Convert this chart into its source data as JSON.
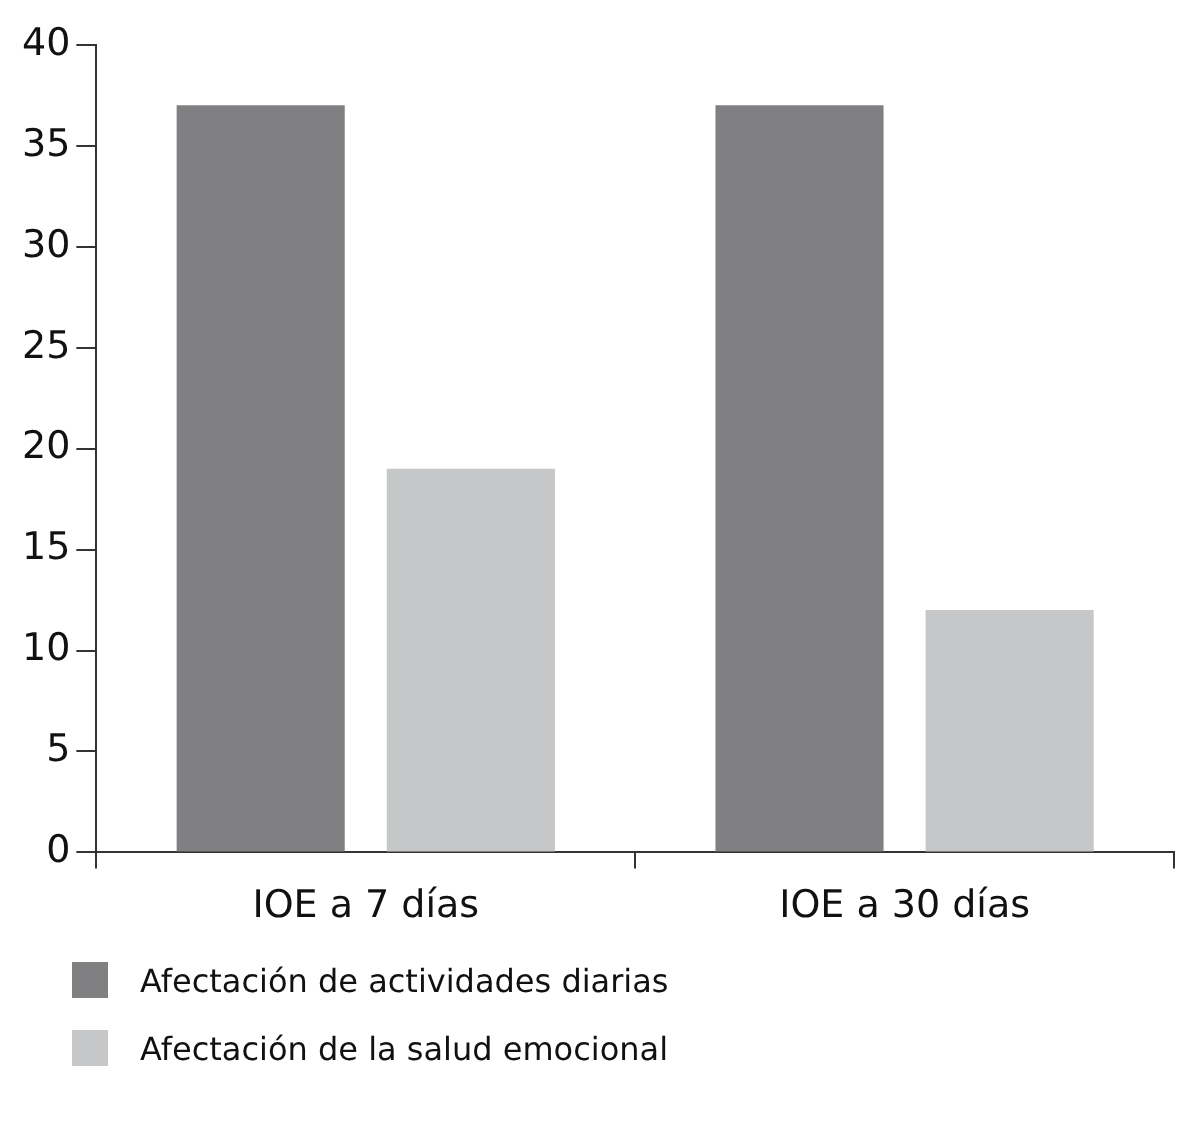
{
  "chart_data": {
    "type": "bar",
    "categories": [
      "IOE a 7 días",
      "IOE a 30 días"
    ],
    "series": [
      {
        "name": "Afectación de actividades diarias",
        "color": "#808083",
        "values": [
          37,
          37
        ]
      },
      {
        "name": "Afectación de la salud emocional",
        "color": "#c6c7c9",
        "values": [
          19,
          12
        ]
      }
    ],
    "ylim": [
      0,
      40
    ],
    "yticks": [
      0,
      5,
      10,
      15,
      20,
      25,
      30,
      35,
      40
    ],
    "grid": false,
    "legend": "bottom left"
  }
}
